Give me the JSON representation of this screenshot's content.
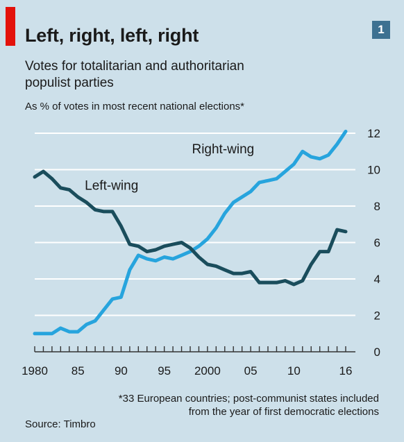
{
  "badge": {
    "number": "1",
    "color": "#3d7191"
  },
  "accent_color": "#e3120b",
  "footnote": "*33 European countries; post-communist states included from the year of first democratic elections",
  "source": "Source: Timbro",
  "chart_data": {
    "type": "line",
    "title": "Left, right, left, right",
    "subtitle": "Votes for totalitarian and authoritarian populist parties",
    "ylabel": "As % of votes in most recent national elections*",
    "xlabel": "",
    "xlim": [
      1980,
      2016
    ],
    "ylim": [
      0,
      12
    ],
    "yticks": [
      "0",
      "2",
      "4",
      "6",
      "8",
      "10",
      "12"
    ],
    "xticks": [
      {
        "year": 1980,
        "label": "1980"
      },
      {
        "year": 1985,
        "label": "85"
      },
      {
        "year": 1990,
        "label": "90"
      },
      {
        "year": 1995,
        "label": "95"
      },
      {
        "year": 2000,
        "label": "2000"
      },
      {
        "year": 2005,
        "label": "05"
      },
      {
        "year": 2010,
        "label": "10"
      },
      {
        "year": 2016,
        "label": "16"
      }
    ],
    "grid": true,
    "y_axis_position": "right",
    "series": [
      {
        "name": "Right-wing",
        "color": "#27a4dd",
        "x": [
          1980,
          1981,
          1982,
          1983,
          1984,
          1985,
          1986,
          1987,
          1988,
          1989,
          1990,
          1991,
          1992,
          1993,
          1994,
          1995,
          1996,
          1997,
          1998,
          1999,
          2000,
          2001,
          2002,
          2003,
          2004,
          2005,
          2006,
          2007,
          2008,
          2009,
          2010,
          2011,
          2012,
          2013,
          2014,
          2015,
          2016
        ],
        "y": [
          1.0,
          1.0,
          1.0,
          1.3,
          1.1,
          1.1,
          1.5,
          1.7,
          2.3,
          2.9,
          3.0,
          4.5,
          5.3,
          5.1,
          5.0,
          5.2,
          5.1,
          5.3,
          5.5,
          5.8,
          6.2,
          6.8,
          7.6,
          8.2,
          8.5,
          8.8,
          9.3,
          9.4,
          9.5,
          9.9,
          10.3,
          11.0,
          10.7,
          10.6,
          10.8,
          11.4,
          12.1
        ]
      },
      {
        "name": "Left-wing",
        "color": "#1a4d5c",
        "x": [
          1980,
          1981,
          1982,
          1983,
          1984,
          1985,
          1986,
          1987,
          1988,
          1989,
          1990,
          1991,
          1992,
          1993,
          1994,
          1995,
          1996,
          1997,
          1998,
          1999,
          2000,
          2001,
          2002,
          2003,
          2004,
          2005,
          2006,
          2007,
          2008,
          2009,
          2010,
          2011,
          2012,
          2013,
          2014,
          2015,
          2016
        ],
        "y": [
          9.6,
          9.9,
          9.5,
          9.0,
          8.9,
          8.5,
          8.2,
          7.8,
          7.7,
          7.7,
          6.9,
          5.9,
          5.8,
          5.5,
          5.6,
          5.8,
          5.9,
          6.0,
          5.7,
          5.2,
          4.8,
          4.7,
          4.5,
          4.3,
          4.3,
          4.4,
          3.8,
          3.8,
          3.8,
          3.9,
          3.7,
          3.9,
          4.8,
          5.5,
          5.5,
          6.7,
          6.6
        ]
      }
    ],
    "series_labels": [
      {
        "series": 0,
        "text": "Right-wing",
        "anchor_year": 1998.2,
        "anchor_value": 10.9
      },
      {
        "series": 1,
        "text": "Left-wing",
        "anchor_year": 1985.8,
        "anchor_value": 8.9
      }
    ]
  }
}
